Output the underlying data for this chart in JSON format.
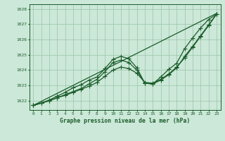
{
  "title": "Graphe pression niveau de la mer (hPa)",
  "bg_color": "#cce8d8",
  "grid_color": "#99c4aa",
  "line_color": "#1a5c2a",
  "xlim": [
    -0.5,
    23.5
  ],
  "ylim": [
    1021.4,
    1028.3
  ],
  "yticks": [
    1022,
    1023,
    1024,
    1025,
    1026,
    1027,
    1028
  ],
  "xticks": [
    0,
    1,
    2,
    3,
    4,
    5,
    6,
    7,
    8,
    9,
    10,
    11,
    12,
    13,
    14,
    15,
    16,
    17,
    18,
    19,
    20,
    21,
    22,
    23
  ],
  "series1_straight": {
    "x": [
      0,
      23
    ],
    "y": [
      1021.7,
      1027.7
    ]
  },
  "series2": {
    "x": [
      0,
      1,
      2,
      3,
      4,
      5,
      6,
      7,
      8,
      9,
      10,
      11,
      12,
      13,
      14,
      15,
      16,
      17,
      18,
      19,
      20,
      21,
      22,
      23
    ],
    "y": [
      1021.7,
      1021.85,
      1022.0,
      1022.2,
      1022.35,
      1022.55,
      1022.75,
      1022.95,
      1023.2,
      1023.6,
      1024.0,
      1024.2,
      1024.1,
      1023.8,
      1023.2,
      1023.15,
      1023.4,
      1023.75,
      1024.2,
      1024.8,
      1025.5,
      1026.2,
      1026.9,
      1027.65
    ]
  },
  "series3": {
    "x": [
      0,
      1,
      2,
      3,
      4,
      5,
      6,
      7,
      8,
      9,
      10,
      11,
      12,
      13,
      14,
      15,
      16,
      17,
      18,
      19,
      20,
      21,
      22,
      23
    ],
    "y": [
      1021.7,
      1021.85,
      1022.0,
      1022.2,
      1022.4,
      1022.6,
      1022.8,
      1023.1,
      1023.4,
      1023.9,
      1024.5,
      1024.65,
      1024.5,
      1024.0,
      1023.15,
      1023.1,
      1023.35,
      1023.7,
      1024.15,
      1024.9,
      1025.55,
      1026.25,
      1026.95,
      1027.65
    ]
  },
  "series4_wavy": {
    "x": [
      0,
      1,
      2,
      3,
      4,
      5,
      6,
      7,
      8,
      9,
      10,
      11,
      12,
      13,
      14,
      15,
      16,
      17,
      18,
      19,
      20,
      21,
      22,
      23
    ],
    "y": [
      1021.7,
      1021.85,
      1022.05,
      1022.3,
      1022.55,
      1022.85,
      1023.05,
      1023.35,
      1023.55,
      1024.1,
      1024.7,
      1024.9,
      1024.75,
      1024.15,
      1023.15,
      1023.1,
      1023.55,
      1024.05,
      1024.45,
      1025.4,
      1026.1,
      1026.75,
      1027.3,
      1027.65
    ]
  }
}
